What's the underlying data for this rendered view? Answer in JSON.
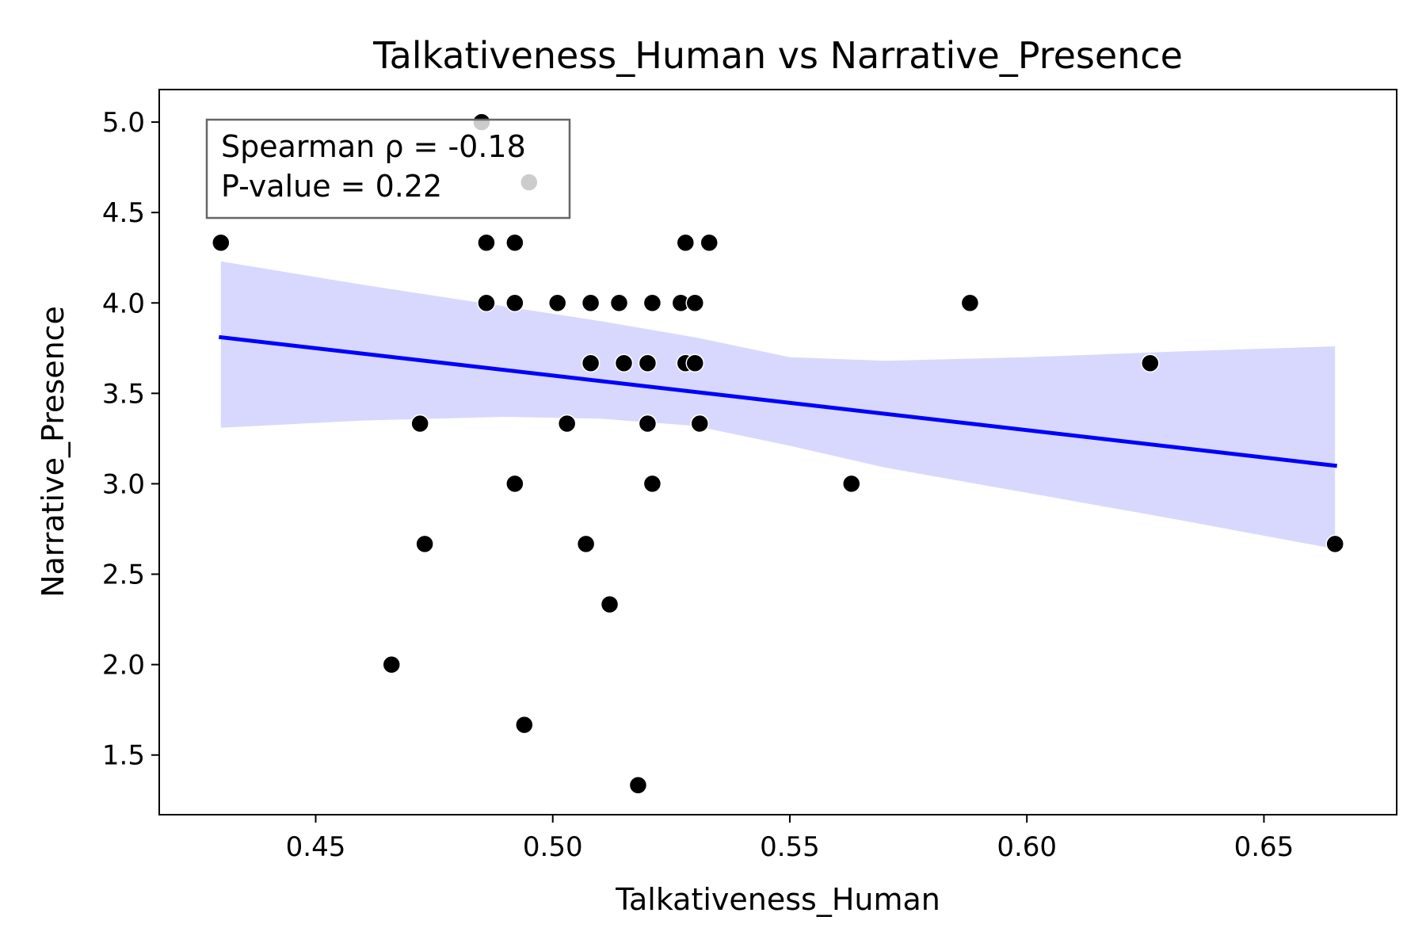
{
  "chart_data": {
    "type": "scatter",
    "title": "Talkativeness_Human vs Narrative_Presence",
    "xlabel": "Talkativeness_Human",
    "ylabel": "Narrative_Presence",
    "xlim": [
      0.417,
      0.678
    ],
    "ylim": [
      1.17,
      5.18
    ],
    "xticks": [
      0.45,
      0.5,
      0.55,
      0.6,
      0.65
    ],
    "xtick_labels": [
      "0.45",
      "0.50",
      "0.55",
      "0.60",
      "0.65"
    ],
    "yticks": [
      1.5,
      2.0,
      2.5,
      3.0,
      3.5,
      4.0,
      4.5,
      5.0
    ],
    "ytick_labels": [
      "1.5",
      "2.0",
      "2.5",
      "3.0",
      "3.5",
      "4.0",
      "4.5",
      "5.0"
    ],
    "grid": false,
    "point_color": "#000000",
    "line_color": "#0000ff",
    "band_color": "#d8d8ff",
    "points": [
      [
        0.43,
        4.333
      ],
      [
        0.485,
        5.0
      ],
      [
        0.495,
        4.667
      ],
      [
        0.486,
        4.333
      ],
      [
        0.492,
        4.333
      ],
      [
        0.528,
        4.333
      ],
      [
        0.533,
        4.333
      ],
      [
        0.486,
        4.0
      ],
      [
        0.492,
        4.0
      ],
      [
        0.501,
        4.0
      ],
      [
        0.508,
        4.0
      ],
      [
        0.514,
        4.0
      ],
      [
        0.521,
        4.0
      ],
      [
        0.527,
        4.0
      ],
      [
        0.53,
        4.0
      ],
      [
        0.588,
        4.0
      ],
      [
        0.508,
        3.667
      ],
      [
        0.515,
        3.667
      ],
      [
        0.52,
        3.667
      ],
      [
        0.528,
        3.667
      ],
      [
        0.53,
        3.667
      ],
      [
        0.626,
        3.667
      ],
      [
        0.472,
        3.333
      ],
      [
        0.503,
        3.333
      ],
      [
        0.52,
        3.333
      ],
      [
        0.531,
        3.333
      ],
      [
        0.492,
        3.0
      ],
      [
        0.521,
        3.0
      ],
      [
        0.563,
        3.0
      ],
      [
        0.473,
        2.667
      ],
      [
        0.507,
        2.667
      ],
      [
        0.665,
        2.667
      ],
      [
        0.512,
        2.333
      ],
      [
        0.466,
        2.0
      ],
      [
        0.494,
        1.667
      ],
      [
        0.518,
        1.333
      ]
    ],
    "regression": {
      "x": [
        0.43,
        0.665
      ],
      "y": [
        3.81,
        3.1
      ]
    },
    "confidence_band": {
      "x": [
        0.43,
        0.46,
        0.49,
        0.51,
        0.53,
        0.55,
        0.57,
        0.6,
        0.63,
        0.665
      ],
      "upper": [
        4.23,
        4.1,
        3.98,
        3.9,
        3.81,
        3.7,
        3.68,
        3.7,
        3.73,
        3.76
      ],
      "lower": [
        3.31,
        3.35,
        3.37,
        3.36,
        3.32,
        3.21,
        3.09,
        2.95,
        2.81,
        2.64
      ]
    },
    "annotation": {
      "line1": "Spearman ρ = -0.18",
      "line2": "P-value = 0.22",
      "placement": "top-left"
    }
  }
}
